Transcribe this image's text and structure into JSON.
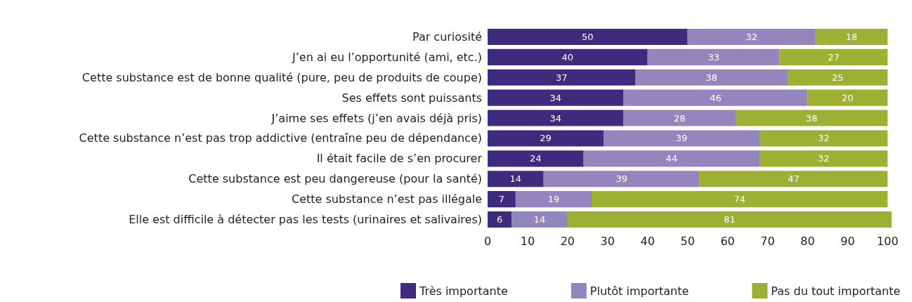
{
  "chart_data": {
    "type": "bar",
    "orientation": "horizontal",
    "stacked": true,
    "data_labels": true,
    "grid": false,
    "legend": "bottom",
    "categories": [
      "Par curiosité",
      "J’en ai eu l’opportunité (ami, etc.)",
      "Cette substance est de bonne qualité (pure, peu de produits de coupe)",
      "Ses effets sont puissants",
      "J’aime ses effets (j’en avais déjà pris)",
      "Cette substance n’est pas trop addictive (entraîne peu de dépendance)",
      "Il était facile de s’en procurer",
      "Cette substance est peu dangereuse (pour la santé)",
      "Cette substance n’est pas illégale",
      "Elle est difficile à détecter pas les tests (urinaires et salivaires)"
    ],
    "series": [
      {
        "name": "Très importante",
        "color": "#3d2b7d",
        "values": [
          50,
          40,
          37,
          34,
          34,
          29,
          24,
          14,
          7,
          6
        ]
      },
      {
        "name": "Plutôt importante",
        "color": "#9286bc",
        "values": [
          32,
          33,
          38,
          46,
          28,
          39,
          44,
          39,
          19,
          14
        ]
      },
      {
        "name": "Pas du tout importante",
        "color": "#9db033",
        "values": [
          18,
          27,
          25,
          20,
          38,
          32,
          32,
          47,
          74,
          81
        ]
      }
    ],
    "xlim": [
      0,
      101
    ],
    "xticks": [
      0,
      10,
      20,
      30,
      40,
      50,
      60,
      70,
      80,
      90,
      100
    ]
  }
}
